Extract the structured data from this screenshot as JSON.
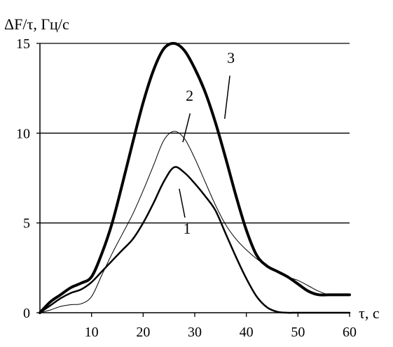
{
  "chart_data": {
    "type": "line",
    "ylabel": "ΔF/τ, Гц/с",
    "xlabel": "τ, с",
    "xlim": [
      0,
      60
    ],
    "ylim": [
      0,
      15
    ],
    "x_ticks": [
      10,
      20,
      30,
      40,
      50,
      60
    ],
    "y_ticks": [
      0,
      5,
      10,
      15
    ],
    "grid": "horizontal",
    "series": [
      {
        "name": "1",
        "stroke": 2.5,
        "x": [
          0,
          2,
          4,
          6,
          8,
          10,
          12,
          14,
          16,
          18,
          20,
          22,
          24,
          26,
          28,
          30,
          32,
          34,
          36,
          38,
          40,
          42,
          44,
          46,
          48,
          50,
          55,
          60
        ],
        "y": [
          0,
          0.4,
          0.8,
          1.1,
          1.3,
          1.7,
          2.3,
          2.9,
          3.5,
          4.1,
          5.0,
          6.1,
          7.3,
          8.1,
          7.8,
          7.2,
          6.5,
          5.7,
          4.4,
          3.1,
          1.9,
          0.9,
          0.3,
          0.05,
          0,
          0,
          0,
          0
        ]
      },
      {
        "name": "2",
        "stroke": 1,
        "x": [
          0,
          2,
          4,
          6,
          8,
          10,
          12,
          14,
          16,
          18,
          20,
          22,
          24,
          26,
          28,
          30,
          32,
          34,
          36,
          38,
          40,
          42,
          44,
          46,
          48,
          50,
          52,
          54,
          56,
          58,
          60
        ],
        "y": [
          0,
          0.15,
          0.35,
          0.45,
          0.5,
          0.9,
          2.1,
          3.3,
          4.4,
          5.5,
          6.8,
          8.2,
          9.6,
          10.1,
          9.7,
          8.6,
          7.3,
          6.0,
          4.9,
          4.1,
          3.5,
          3.0,
          2.6,
          2.3,
          2.0,
          1.8,
          1.5,
          1.2,
          1.0,
          1.0,
          1.0
        ]
      },
      {
        "name": "3",
        "stroke": 4,
        "x": [
          0,
          2,
          4,
          6,
          8,
          10,
          12,
          14,
          16,
          18,
          20,
          22,
          24,
          26,
          28,
          30,
          32,
          34,
          36,
          38,
          40,
          42,
          44,
          46,
          48,
          50,
          52,
          54,
          56,
          58,
          60
        ],
        "y": [
          0,
          0.6,
          1.0,
          1.4,
          1.65,
          2.0,
          3.3,
          5.0,
          7.2,
          9.5,
          11.7,
          13.5,
          14.7,
          15.0,
          14.6,
          13.6,
          12.3,
          10.6,
          8.6,
          6.5,
          4.6,
          3.2,
          2.6,
          2.3,
          2.0,
          1.6,
          1.2,
          1.0,
          1.0,
          1.0,
          1.0
        ]
      }
    ],
    "annotations": [
      "1",
      "2",
      "3"
    ]
  }
}
